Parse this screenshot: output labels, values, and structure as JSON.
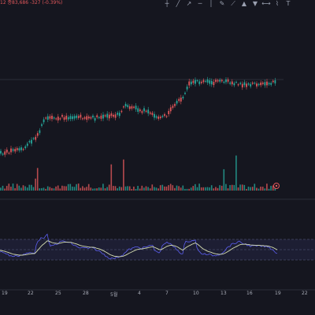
{
  "header": {
    "symbol_info": "12 종83,686 -327 (-0.39%)"
  },
  "toolbar": {
    "icons": [
      "crosshair-icon",
      "trendline-icon",
      "arrow-icon",
      "horizontal-line-icon",
      "vertical-line-icon",
      "pencil-icon",
      "ruler-icon",
      "long-icon",
      "short-icon",
      "range-icon",
      "brush-icon",
      "text-icon"
    ]
  },
  "x_axis": {
    "labels": [
      "19",
      "22",
      "25",
      "28",
      "5월",
      "4",
      "7",
      "10",
      "13",
      "16",
      "19",
      "22"
    ]
  },
  "colors": {
    "background": "#15161f",
    "up": "#26a69a",
    "down": "#e0575a",
    "rsi_line": "#5b5ef0",
    "signal_line": "#d7dfb1",
    "grid": "#2a2d3a"
  }
}
